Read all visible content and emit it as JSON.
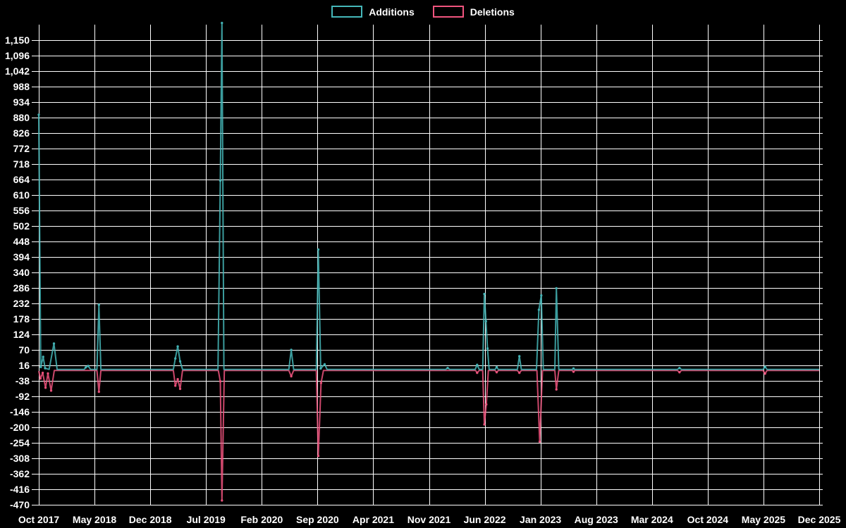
{
  "legend": {
    "additions_label": "Additions",
    "deletions_label": "Deletions"
  },
  "colors": {
    "background": "#000000",
    "grid": "#ffffff",
    "text": "#ffffff",
    "additions": "#45b7b9",
    "deletions": "#f0547e"
  },
  "chart_data": {
    "type": "line",
    "title": "",
    "xlabel": "",
    "ylabel": "",
    "grid": true,
    "legend_position": "top-center",
    "x_axis": {
      "unit": "month-index from Oct 2017",
      "min": 0,
      "max": 98,
      "tick_month_index": [
        0,
        7,
        14,
        21,
        28,
        35,
        42,
        49,
        56,
        63,
        70,
        77,
        84,
        91,
        98
      ],
      "tick_labels": [
        "Oct 2017",
        "May 2018",
        "Dec 2018",
        "Jul 2019",
        "Feb 2020",
        "Sep 2020",
        "Apr 2021",
        "Nov 2021",
        "Jun 2022",
        "Jan 2023",
        "Aug 2023",
        "Mar 2024",
        "Oct 2024",
        "May 2025",
        "Dec 2025"
      ]
    },
    "y_axis": {
      "min": -470,
      "max": 1204,
      "tick_values": [
        1150,
        1096,
        1042,
        988,
        934,
        880,
        826,
        772,
        718,
        664,
        610,
        556,
        502,
        448,
        394,
        340,
        286,
        232,
        178,
        124,
        70,
        16,
        -38,
        -92,
        -146,
        -200,
        -254,
        -308,
        -362,
        -416,
        -470
      ],
      "tick_labels": [
        "1,150",
        "1,096",
        "1,042",
        "988",
        "934",
        "880",
        "826",
        "772",
        "718",
        "664",
        "610",
        "556",
        "502",
        "448",
        "394",
        "340",
        "286",
        "232",
        "178",
        "124",
        "70",
        "16",
        "-38",
        "-92",
        "-146",
        "-200",
        "-254",
        "-308",
        "-362",
        "-416",
        "-470"
      ]
    },
    "series": [
      {
        "name": "Additions",
        "color_key": "additions",
        "points": [
          [
            0,
            890
          ],
          [
            0.25,
            10
          ],
          [
            0.55,
            46
          ],
          [
            0.8,
            6
          ],
          [
            1.3,
            2
          ],
          [
            1.9,
            92
          ],
          [
            2.3,
            2
          ],
          [
            5.7,
            2
          ],
          [
            5.9,
            9
          ],
          [
            6.2,
            14
          ],
          [
            6.5,
            2
          ],
          [
            7.3,
            2
          ],
          [
            7.55,
            227
          ],
          [
            7.8,
            2
          ],
          [
            16.9,
            2
          ],
          [
            17.15,
            40
          ],
          [
            17.45,
            82
          ],
          [
            17.75,
            30
          ],
          [
            18.05,
            2
          ],
          [
            22.5,
            2
          ],
          [
            22.8,
            660
          ],
          [
            23.0,
            1210
          ],
          [
            23.25,
            2
          ],
          [
            31.4,
            2
          ],
          [
            31.7,
            70
          ],
          [
            32.0,
            2
          ],
          [
            34.85,
            2
          ],
          [
            35.1,
            420
          ],
          [
            35.4,
            5
          ],
          [
            35.9,
            20
          ],
          [
            36.2,
            2
          ],
          [
            51.1,
            2
          ],
          [
            51.35,
            7
          ],
          [
            51.6,
            2
          ],
          [
            54.8,
            2
          ],
          [
            55.05,
            18
          ],
          [
            55.3,
            2
          ],
          [
            55.75,
            2
          ],
          [
            55.95,
            265
          ],
          [
            56.15,
            170
          ],
          [
            56.35,
            75
          ],
          [
            56.55,
            2
          ],
          [
            57.3,
            2
          ],
          [
            57.5,
            10
          ],
          [
            57.7,
            2
          ],
          [
            60.1,
            2
          ],
          [
            60.35,
            48
          ],
          [
            60.6,
            2
          ],
          [
            62.5,
            2
          ],
          [
            62.8,
            210
          ],
          [
            63.1,
            260
          ],
          [
            63.35,
            2
          ],
          [
            64.8,
            2
          ],
          [
            65.0,
            285
          ],
          [
            65.3,
            2
          ],
          [
            67.0,
            2
          ],
          [
            67.15,
            5
          ],
          [
            67.3,
            2
          ],
          [
            80.2,
            2
          ],
          [
            80.45,
            7
          ],
          [
            80.7,
            2
          ],
          [
            90.95,
            2
          ],
          [
            91.2,
            11
          ],
          [
            91.45,
            2
          ],
          [
            98,
            2
          ]
        ]
      },
      {
        "name": "Deletions",
        "color_key": "deletions",
        "points": [
          [
            0,
            -4
          ],
          [
            0.2,
            -30
          ],
          [
            0.5,
            -10
          ],
          [
            0.85,
            -62
          ],
          [
            1.15,
            -12
          ],
          [
            1.55,
            -72
          ],
          [
            1.95,
            -2
          ],
          [
            7.3,
            -2
          ],
          [
            7.55,
            -76
          ],
          [
            7.8,
            -2
          ],
          [
            16.9,
            -2
          ],
          [
            17.15,
            -55
          ],
          [
            17.45,
            -32
          ],
          [
            17.75,
            -66
          ],
          [
            18.05,
            -2
          ],
          [
            22.55,
            -2
          ],
          [
            22.8,
            -40
          ],
          [
            23.0,
            -455
          ],
          [
            23.3,
            -2
          ],
          [
            31.4,
            -2
          ],
          [
            31.7,
            -22
          ],
          [
            32.0,
            -2
          ],
          [
            34.85,
            -2
          ],
          [
            35.1,
            -300
          ],
          [
            35.45,
            -45
          ],
          [
            35.75,
            -2
          ],
          [
            54.85,
            -2
          ],
          [
            55.05,
            -10
          ],
          [
            55.3,
            -2
          ],
          [
            55.75,
            -2
          ],
          [
            55.95,
            -190
          ],
          [
            56.2,
            -120
          ],
          [
            56.45,
            -2
          ],
          [
            57.3,
            -2
          ],
          [
            57.5,
            -8
          ],
          [
            57.7,
            -2
          ],
          [
            60.1,
            -2
          ],
          [
            60.35,
            -10
          ],
          [
            60.6,
            -2
          ],
          [
            62.55,
            -2
          ],
          [
            62.9,
            -250
          ],
          [
            63.25,
            -2
          ],
          [
            64.8,
            -2
          ],
          [
            65.0,
            -68
          ],
          [
            65.3,
            -2
          ],
          [
            67.0,
            -2
          ],
          [
            67.15,
            -6
          ],
          [
            67.3,
            -2
          ],
          [
            80.2,
            -2
          ],
          [
            80.45,
            -8
          ],
          [
            80.7,
            -2
          ],
          [
            90.95,
            -2
          ],
          [
            91.2,
            -13
          ],
          [
            91.45,
            -2
          ],
          [
            98,
            -2
          ]
        ]
      }
    ]
  }
}
